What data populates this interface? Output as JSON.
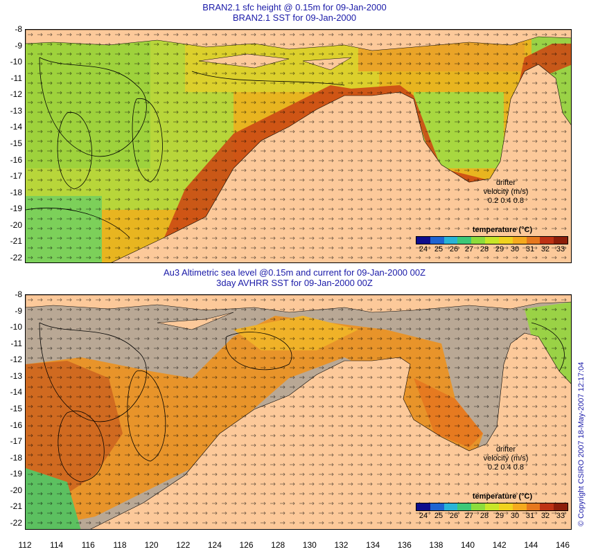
{
  "top_panel": {
    "title_line1": "BRAN2.1 sfc height @ 0.15m for 09-Jan-2000",
    "title_line2": "BRAN2.1 SST for 09-Jan-2000",
    "legend_title": "temperature (°C)",
    "drifter_label_1": "drifter",
    "drifter_label_2": "velocity (m/s)",
    "drifter_scale": "0.2  0.4  0.8"
  },
  "bottom_panel": {
    "title_line1": "Au3 Altimetric sea level  @0.15m and current for 09-Jan-2000 00Z",
    "title_line2": "3day AVHRR SST for 09-Jan-2000 00Z",
    "legend_title": "temperature (°C)",
    "drifter_label_1": "drifter",
    "drifter_label_2": "velocity (m/s)",
    "drifter_scale": "0.2  0.4  0.8"
  },
  "y_axis_labels": [
    "-8",
    "-9",
    "-10",
    "-11",
    "-12",
    "-13",
    "-14",
    "-15",
    "-16",
    "-17",
    "-18",
    "-19",
    "-20",
    "-21",
    "-22"
  ],
  "x_axis_labels": [
    "112",
    "114",
    "116",
    "118",
    "120",
    "122",
    "124",
    "126",
    "128",
    "130",
    "132",
    "134",
    "136",
    "138",
    "140",
    "142",
    "144",
    "146"
  ],
  "colorbar_ticks": [
    "24",
    "25",
    "26",
    "27",
    "28",
    "29",
    "30",
    "31",
    "32",
    "33"
  ],
  "colors": {
    "land": "#fcc99a",
    "nodata": "#b9a895",
    "title": "#1a1aa8",
    "colorbar": [
      "#0d0d8c",
      "#1e64d2",
      "#28b4d7",
      "#3cc878",
      "#8cdc3c",
      "#c8e628",
      "#f0d21e",
      "#f5aa1e",
      "#e6781e",
      "#be3214",
      "#8c1e0a"
    ]
  },
  "copyright": "© Copyright CSIRO 2007  18-May-2007 12:17:04"
}
